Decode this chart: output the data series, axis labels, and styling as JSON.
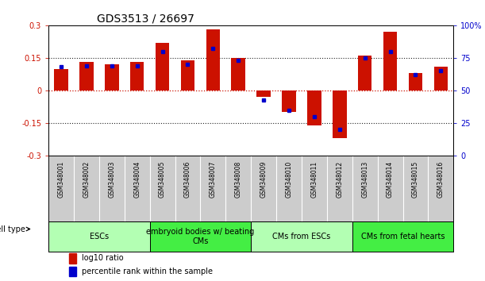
{
  "title": "GDS3513 / 26697",
  "samples": [
    "GSM348001",
    "GSM348002",
    "GSM348003",
    "GSM348004",
    "GSM348005",
    "GSM348006",
    "GSM348007",
    "GSM348008",
    "GSM348009",
    "GSM348010",
    "GSM348011",
    "GSM348012",
    "GSM348013",
    "GSM348014",
    "GSM348015",
    "GSM348016"
  ],
  "log10_ratio": [
    0.1,
    0.13,
    0.12,
    0.13,
    0.22,
    0.14,
    0.28,
    0.15,
    -0.03,
    -0.1,
    -0.16,
    -0.22,
    0.16,
    0.27,
    0.08,
    0.11
  ],
  "percentile_rank": [
    68,
    69,
    69,
    69,
    80,
    70,
    82,
    73,
    43,
    35,
    30,
    20,
    75,
    80,
    62,
    65
  ],
  "cell_type_groups": [
    {
      "label": "ESCs",
      "start": 0,
      "end": 3,
      "color": "#b3ffb3"
    },
    {
      "label": "embryoid bodies w/ beating\nCMs",
      "start": 4,
      "end": 7,
      "color": "#44ee44"
    },
    {
      "label": "CMs from ESCs",
      "start": 8,
      "end": 11,
      "color": "#b3ffb3"
    },
    {
      "label": "CMs from fetal hearts",
      "start": 12,
      "end": 15,
      "color": "#44ee44"
    }
  ],
  "ylim": [
    -0.3,
    0.3
  ],
  "yticks_left": [
    -0.3,
    -0.15,
    0.0,
    0.15,
    0.3
  ],
  "ytick_labels_left": [
    "-0.3",
    "-0.15",
    "0",
    "0.15",
    "0.3"
  ],
  "y2ticks": [
    0,
    25,
    50,
    75,
    100
  ],
  "y2tick_labels": [
    "0",
    "25",
    "50",
    "75",
    "100%"
  ],
  "bar_color_red": "#cc1100",
  "bar_color_blue": "#0000cc",
  "dotted_line_color": "#222222",
  "zero_line_color": "#cc1100",
  "bg_plot": "#ffffff",
  "bg_labels": "#cccccc",
  "title_fontsize": 10,
  "tick_fontsize": 7,
  "sample_fontsize": 5.5,
  "celltype_fontsize": 7,
  "legend_fontsize": 7,
  "bar_width": 0.55
}
